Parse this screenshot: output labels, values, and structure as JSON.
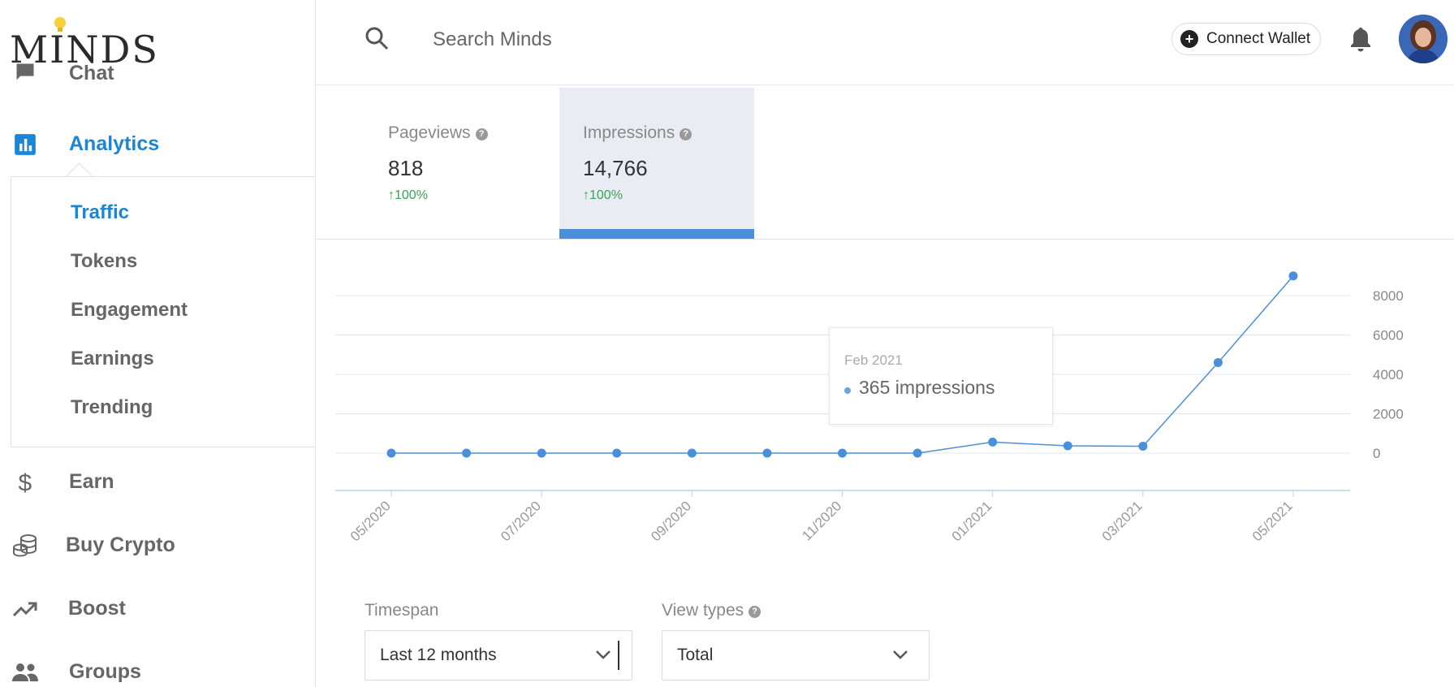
{
  "brand": {
    "logo_text": "MINDS"
  },
  "sidebar": {
    "partial_item": {
      "label": "Chat",
      "icon": "chat-icon"
    },
    "analytics": {
      "label": "Analytics",
      "icon": "analytics-icon"
    },
    "submenu": [
      "Traffic",
      "Tokens",
      "Engagement",
      "Earnings",
      "Trending"
    ],
    "items": [
      {
        "label": "Earn",
        "icon": "dollar-icon"
      },
      {
        "label": "Buy Crypto",
        "icon": "coins-icon"
      },
      {
        "label": "Boost",
        "icon": "trending-up-icon"
      },
      {
        "label": "Groups",
        "icon": "groups-icon"
      }
    ]
  },
  "topbar": {
    "search_placeholder": "Search Minds",
    "connect_wallet": "Connect Wallet"
  },
  "metrics": {
    "pageviews": {
      "label": "Pageviews",
      "value": "818",
      "change": "100%"
    },
    "impressions": {
      "label": "Impressions",
      "value": "14,766",
      "change": "100%"
    }
  },
  "tooltip": {
    "date": "Feb 2021",
    "value": "365 impressions"
  },
  "chart_data": {
    "type": "line",
    "series": [
      {
        "name": "Impressions",
        "values": [
          0,
          0,
          0,
          0,
          0,
          0,
          0,
          0,
          560,
          370,
          350,
          4600,
          9000
        ]
      }
    ],
    "x": [
      "05/2020",
      "06/2020",
      "07/2020",
      "08/2020",
      "09/2020",
      "10/2020",
      "11/2020",
      "12/2020",
      "01/2021",
      "02/2021",
      "03/2021",
      "04/2021",
      "05/2021"
    ],
    "x_tick_labels": [
      "05/2020",
      "07/2020",
      "09/2020",
      "11/2020",
      "01/2021",
      "03/2021",
      "05/2021"
    ],
    "y_ticks": [
      0,
      2000,
      4000,
      6000,
      8000
    ],
    "ylim": [
      0,
      9000
    ],
    "grid": true,
    "y_axis_position": "right",
    "color": "#4a8fdb"
  },
  "filters": {
    "timespan": {
      "label": "Timespan",
      "value": "Last 12 months"
    },
    "view_types": {
      "label": "View types",
      "value": "Total"
    }
  }
}
